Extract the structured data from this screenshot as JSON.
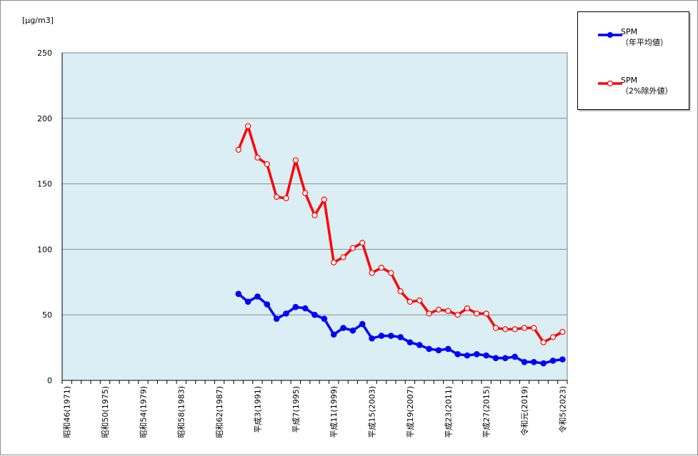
{
  "chart_data": {
    "type": "line",
    "unit_label": "[μg/m3]",
    "ylim": [
      0,
      250
    ],
    "y_ticks": [
      0,
      50,
      100,
      150,
      200,
      250
    ],
    "grid": true,
    "legend_position": "top-right",
    "plot_background": "#DAEEF3",
    "x_start_year": 1971,
    "x_end_year": 2023,
    "x_tick_labels": [
      {
        "year": 1971,
        "label": "昭和46(1971)"
      },
      {
        "year": 1975,
        "label": "昭和50(1975)"
      },
      {
        "year": 1979,
        "label": "昭和54(1979)"
      },
      {
        "year": 1983,
        "label": "昭和58(1983)"
      },
      {
        "year": 1987,
        "label": "昭和62(1987)"
      },
      {
        "year": 1991,
        "label": "平成3(1991)"
      },
      {
        "year": 1995,
        "label": "平成7(1995)"
      },
      {
        "year": 1999,
        "label": "平成11(1999)"
      },
      {
        "year": 2003,
        "label": "平成15(2003)"
      },
      {
        "year": 2007,
        "label": "平成19(2007)"
      },
      {
        "year": 2011,
        "label": "平成23(2011)"
      },
      {
        "year": 2015,
        "label": "平成27(2015)"
      },
      {
        "year": 2019,
        "label": "令和元(2019)"
      },
      {
        "year": 2023,
        "label": "令和5(2023)"
      }
    ],
    "x": [
      1989,
      1990,
      1991,
      1992,
      1993,
      1994,
      1995,
      1996,
      1997,
      1998,
      1999,
      2000,
      2001,
      2002,
      2003,
      2004,
      2005,
      2006,
      2007,
      2008,
      2009,
      2010,
      2011,
      2012,
      2013,
      2014,
      2015,
      2016,
      2017,
      2018,
      2019,
      2020,
      2021,
      2022,
      2023
    ],
    "series": [
      {
        "name": "SPM",
        "name_sub": "（年平均値）",
        "color": "#0000FF",
        "marker": "filled",
        "values": [
          66,
          60,
          64,
          58,
          47,
          51,
          56,
          55,
          50,
          47,
          35,
          40,
          38,
          43,
          32,
          34,
          34,
          33,
          29,
          27,
          24,
          23,
          24,
          20,
          19,
          20,
          19,
          17,
          17,
          18,
          14,
          14,
          13,
          15,
          16
        ]
      },
      {
        "name": "SPM",
        "name_sub": "（2%除外値）",
        "color": "#FF0000",
        "marker": "hollow",
        "values": [
          176,
          194,
          170,
          165,
          140,
          139,
          168,
          143,
          126,
          138,
          90,
          94,
          101,
          105,
          82,
          86,
          82,
          68,
          60,
          61,
          51,
          54,
          53,
          50,
          55,
          51,
          51,
          40,
          39,
          39,
          40,
          40,
          29,
          33,
          37
        ]
      }
    ]
  }
}
